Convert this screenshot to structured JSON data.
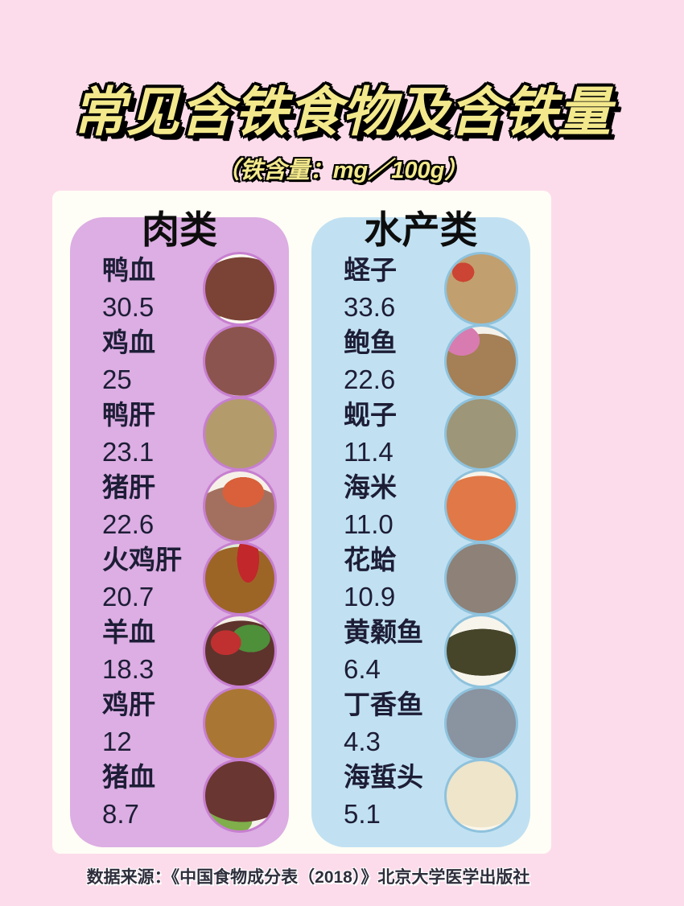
{
  "title": "常见含铁食物及含铁量",
  "subtitle": "（铁含量：mg／100g）",
  "footer": "数据来源：《中国食物成分表（2018）》北京大学医学出版社",
  "colors": {
    "page_background": "#fcdcea",
    "panel_background": "#fffef6",
    "meat_box": "#dcaee3",
    "aqua_box": "#c1e1f2",
    "title_fill": "#f3e98c",
    "title_outline": "#000000",
    "item_text": "#1d1d36"
  },
  "columns": [
    {
      "header": "肉类",
      "items": [
        {
          "name": "鸭血",
          "value": "30.5",
          "photo": "duck-blood"
        },
        {
          "name": "鸡血",
          "value": "25",
          "photo": "chicken-blood"
        },
        {
          "name": "鸭肝",
          "value": "23.1",
          "photo": "duck-liver"
        },
        {
          "name": "猪肝",
          "value": "22.6",
          "photo": "pork-liver"
        },
        {
          "name": "火鸡肝",
          "value": "20.7",
          "photo": "turkey-liver"
        },
        {
          "name": "羊血",
          "value": "18.3",
          "photo": "sheep-blood"
        },
        {
          "name": "鸡肝",
          "value": "12",
          "photo": "chicken-liver"
        },
        {
          "name": "猪血",
          "value": "8.7",
          "photo": "pork-blood"
        }
      ]
    },
    {
      "header": "水产类",
      "items": [
        {
          "name": "蛏子",
          "value": "33.6",
          "photo": "razor-clam"
        },
        {
          "name": "鲍鱼",
          "value": "22.6",
          "photo": "abalone"
        },
        {
          "name": "蚬子",
          "value": "11.4",
          "photo": "clam-xianzi"
        },
        {
          "name": "海米",
          "value": "11.0",
          "photo": "dried-shrimp"
        },
        {
          "name": "花蛤",
          "value": "10.9",
          "photo": "clam-huage"
        },
        {
          "name": "黄颡鱼",
          "value": "6.4",
          "photo": "yellow-catfish"
        },
        {
          "name": "丁香鱼",
          "value": "4.3",
          "photo": "anchovy"
        },
        {
          "name": "海蜇头",
          "value": "5.1",
          "photo": "jellyfish"
        }
      ]
    }
  ],
  "chart_data": [
    {
      "type": "table",
      "title": "肉类",
      "ylabel": "铁含量 (mg/100g)",
      "categories": [
        "鸭血",
        "鸡血",
        "鸭肝",
        "猪肝",
        "火鸡肝",
        "羊血",
        "鸡肝",
        "猪血"
      ],
      "values": [
        30.5,
        25,
        23.1,
        22.6,
        20.7,
        18.3,
        12,
        8.7
      ]
    },
    {
      "type": "table",
      "title": "水产类",
      "ylabel": "铁含量 (mg/100g)",
      "categories": [
        "蛏子",
        "鲍鱼",
        "蚬子",
        "海米",
        "花蛤",
        "黄颡鱼",
        "丁香鱼",
        "海蜇头"
      ],
      "values": [
        33.6,
        22.6,
        11.4,
        11.0,
        10.9,
        6.4,
        4.3,
        5.1
      ]
    }
  ]
}
